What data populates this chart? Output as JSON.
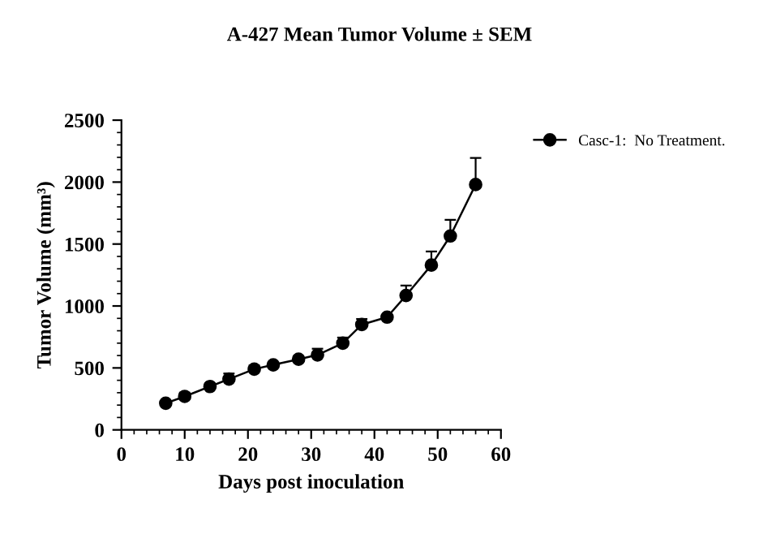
{
  "chart_data": {
    "type": "line",
    "title": "A-427 Mean Tumor Volume ± SEM",
    "xlabel": "Days post inoculation",
    "ylabel": "Tumor Volume (mm³)",
    "x": [
      7,
      10,
      14,
      17,
      21,
      24,
      28,
      31,
      35,
      38,
      42,
      45,
      49,
      52,
      56
    ],
    "series": [
      {
        "name": "Casc-1:  No Treatment.",
        "color": "#000000",
        "values": [
          215,
          270,
          350,
          410,
          490,
          525,
          570,
          605,
          700,
          850,
          910,
          1085,
          1330,
          1565,
          1980
        ],
        "errors": [
          [
            215,
            225
          ],
          [
            270,
            300
          ],
          [
            350,
            375
          ],
          [
            410,
            455
          ],
          [
            490,
            520
          ],
          [
            525,
            540
          ],
          [
            570,
            595
          ],
          [
            605,
            655
          ],
          [
            700,
            745
          ],
          [
            850,
            895
          ],
          [
            910,
            930
          ],
          [
            1085,
            1165
          ],
          [
            1330,
            1440
          ],
          [
            1565,
            1695
          ],
          [
            1980,
            2195
          ]
        ]
      }
    ],
    "xlim": [
      0,
      60
    ],
    "xticks": [
      0,
      10,
      20,
      30,
      40,
      50,
      60
    ],
    "ylim": [
      0,
      2500
    ],
    "yticks": [
      0,
      500,
      1000,
      1500,
      2000,
      2500
    ],
    "marker": "circle",
    "line_style": "solid",
    "grid": false,
    "legend": "top right"
  }
}
